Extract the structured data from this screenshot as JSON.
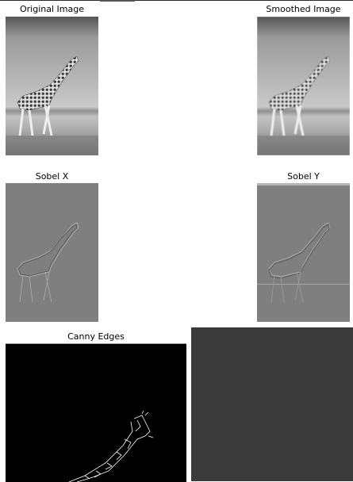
{
  "panels": {
    "original": {
      "title": "Original Image"
    },
    "smoothed": {
      "title": "Smoothed Image"
    },
    "sobel_x": {
      "title": "Sobel X"
    },
    "sobel_y": {
      "title": "Sobel Y"
    },
    "canny": {
      "title": "Canny Edges"
    }
  },
  "colors": {
    "canvas_bg": "#ffffff",
    "dark_panel": "#3a3a3a",
    "sobel_gray": "#7f7f7f",
    "canny_bg": "#000000"
  }
}
